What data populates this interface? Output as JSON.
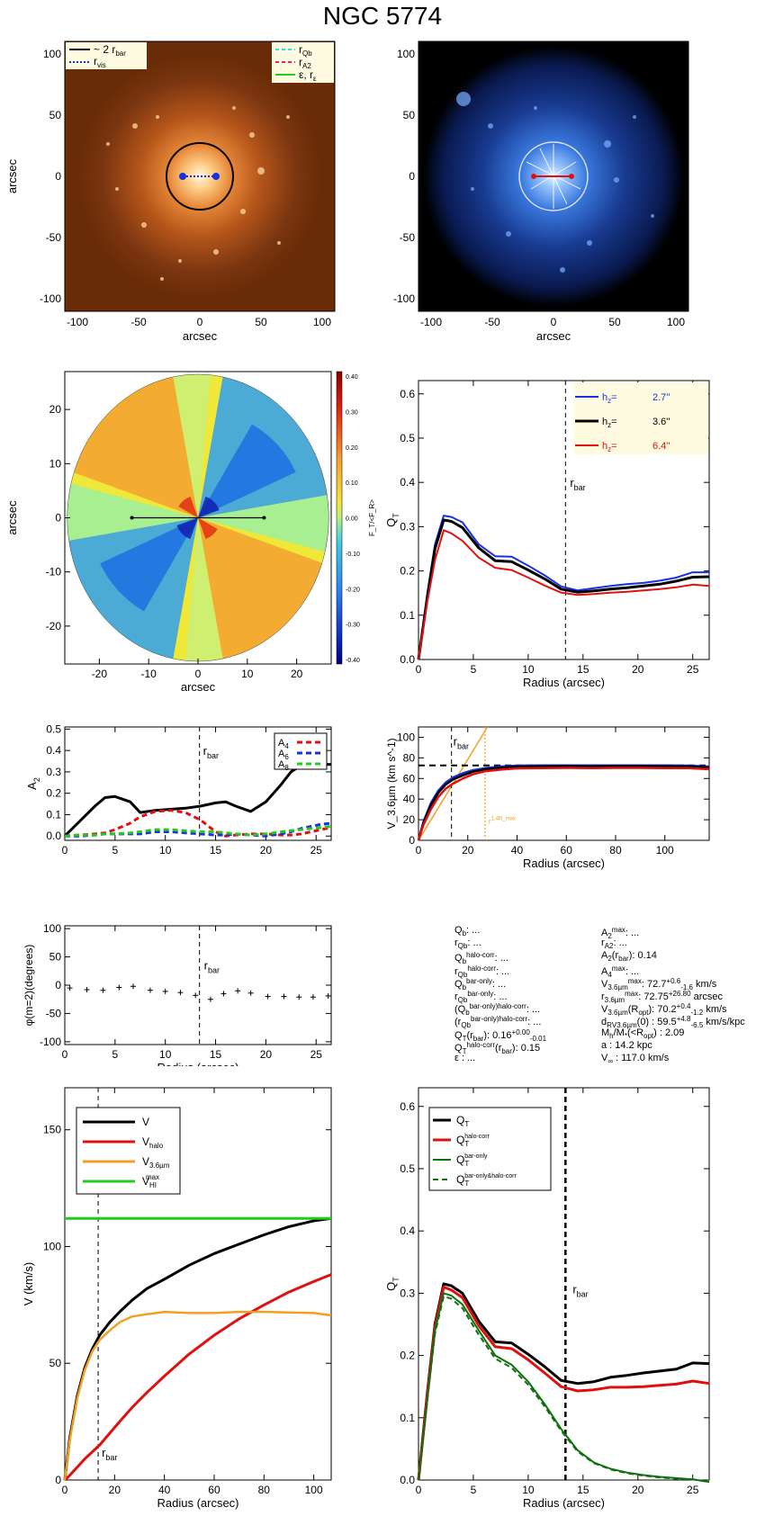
{
  "title": "NGC 5774",
  "colors": {
    "black": "#000000",
    "red": "#e01010",
    "blue": "#1830e0",
    "green": "#20cc20",
    "orange": "#f0a020",
    "dkgreen": "#107010",
    "cyan": "#30e0e0",
    "magenta": "#e0207a",
    "image_bg_orange": "#6a2c08",
    "image_bg_blue": "#000000"
  },
  "panel_images": {
    "left": {
      "xlabel": "arcsec",
      "ylabel": "arcsec",
      "ticks": [
        "-100",
        "-50",
        "0",
        "50",
        "100"
      ],
      "legend_left": [
        "~ 2 r",
        "bar",
        "r",
        "vis"
      ],
      "legend_right": [
        "r",
        "Qb",
        "r",
        "A2",
        "ε, r",
        "ε"
      ]
    },
    "right": {
      "xlabel": "arcsec",
      "ticks": [
        "-100",
        "-50",
        "0",
        "50",
        "100"
      ]
    }
  },
  "chart_data": [
    {
      "id": "ratio_map",
      "type": "heatmap",
      "xlabel": "arcsec",
      "ylabel": "arcsec",
      "xticks": [
        "-20",
        "-10",
        "0",
        "10",
        "20"
      ],
      "yticks": [
        "20",
        "10",
        "0",
        "-10",
        "-20"
      ],
      "xlim": [
        -27,
        27
      ],
      "ylim": [
        -27,
        27
      ],
      "colorbar_label": "F_T/<F_R>",
      "colorbar_ticks": [
        "0.40",
        "0.30",
        "0.20",
        "0.10",
        "0.00",
        "-0.10",
        "-0.20",
        "-0.30",
        "-0.40"
      ],
      "bar_line_x": [
        -13.4,
        13.4
      ]
    },
    {
      "id": "qt_profile",
      "type": "line",
      "xlabel": "Radius (arcsec)",
      "ylabel": "Q_T",
      "xlim": [
        0,
        26.5
      ],
      "ylim": [
        0,
        0.63
      ],
      "xticks": [
        "0",
        "5",
        "10",
        "15",
        "20",
        "25"
      ],
      "yticks": [
        "0.0",
        "0.1",
        "0.2",
        "0.3",
        "0.4",
        "0.5",
        "0.6"
      ],
      "rbar": 13.4,
      "rbar_label": "r",
      "rbar_sub": "bar",
      "legend": [
        "h",
        "z",
        "= ",
        "2.7''",
        "h",
        "z",
        "= ",
        "3.6''",
        "h",
        "z",
        "= ",
        "6.4''"
      ],
      "x": [
        0,
        0.8,
        1.5,
        2.3,
        3.0,
        4.0,
        5.5,
        7.0,
        8.5,
        10.0,
        11.5,
        13.0,
        14.5,
        16.0,
        17.5,
        19.0,
        20.5,
        22.0,
        23.5,
        25.0,
        26.5
      ],
      "series": [
        {
          "name": "2.7''",
          "color": "blue",
          "values": [
            0,
            0.15,
            0.26,
            0.325,
            0.322,
            0.31,
            0.26,
            0.233,
            0.232,
            0.212,
            0.19,
            0.165,
            0.156,
            0.161,
            0.166,
            0.17,
            0.173,
            0.178,
            0.185,
            0.197,
            0.197
          ]
        },
        {
          "name": "3.6''",
          "color": "black",
          "values": [
            0,
            0.14,
            0.25,
            0.315,
            0.312,
            0.298,
            0.252,
            0.223,
            0.221,
            0.202,
            0.182,
            0.159,
            0.152,
            0.155,
            0.159,
            0.162,
            0.166,
            0.17,
            0.177,
            0.186,
            0.187
          ]
        },
        {
          "name": "6.4''",
          "color": "red",
          "values": [
            0,
            0.13,
            0.225,
            0.292,
            0.285,
            0.268,
            0.23,
            0.207,
            0.202,
            0.185,
            0.167,
            0.151,
            0.146,
            0.148,
            0.151,
            0.153,
            0.156,
            0.159,
            0.163,
            0.169,
            0.166
          ]
        }
      ]
    },
    {
      "id": "fourier_amps",
      "type": "line",
      "ylabel": "A_2",
      "xlim": [
        0,
        26.5
      ],
      "ylim": [
        -0.02,
        0.51
      ],
      "xticks": [
        "0",
        "5",
        "10",
        "15",
        "20",
        "25"
      ],
      "yticks": [
        "0.0",
        "0.1",
        "0.2",
        "0.3",
        "0.4",
        "0.5"
      ],
      "rbar": 13.4,
      "rbar_label": "r",
      "rbar_sub": "bar",
      "legend": [
        "A",
        "4",
        "A",
        "6",
        "A",
        "8"
      ],
      "x": [
        0,
        1.5,
        3.0,
        4.0,
        5.0,
        6.5,
        7.5,
        9.0,
        10.5,
        12.0,
        13.5,
        15.0,
        16.0,
        17.0,
        18.5,
        20.0,
        21.5,
        22.5,
        23.5,
        24.5,
        25.5,
        26.5
      ],
      "series": [
        {
          "name": "A2",
          "color": "black",
          "values": [
            0,
            0.07,
            0.14,
            0.18,
            0.185,
            0.16,
            0.11,
            0.12,
            0.125,
            0.13,
            0.14,
            0.155,
            0.16,
            0.14,
            0.115,
            0.16,
            0.24,
            0.3,
            0.33,
            0.335,
            0.335,
            0.335
          ]
        },
        {
          "name": "A4",
          "color": "red",
          "values": [
            0,
            0.005,
            0.01,
            0.015,
            0.03,
            0.06,
            0.09,
            0.115,
            0.12,
            0.11,
            0.075,
            0.02,
            0.0,
            0.005,
            0.01,
            0.01,
            0.005,
            0.005,
            0.01,
            0.02,
            0.03,
            0.04
          ]
        },
        {
          "name": "A6",
          "color": "blue",
          "values": [
            0,
            0.0,
            0.005,
            0.01,
            0.01,
            0.01,
            0.01,
            0.02,
            0.02,
            0.015,
            0.01,
            0.005,
            0.005,
            0.01,
            0.005,
            0.0,
            0.01,
            0.02,
            0.035,
            0.045,
            0.055,
            0.06
          ]
        },
        {
          "name": "A8",
          "color": "green",
          "values": [
            0,
            0.005,
            0.005,
            0.01,
            0.01,
            0.015,
            0.02,
            0.03,
            0.03,
            0.025,
            0.02,
            0.02,
            0.015,
            0.01,
            0.005,
            0.01,
            0.02,
            0.025,
            0.03,
            0.035,
            0.04,
            0.045
          ]
        }
      ]
    },
    {
      "id": "rotation_36",
      "type": "line",
      "ylabel": "V_3.6µm (km s^-1)",
      "xlabel": "Radius (arcsec)",
      "xlim": [
        0,
        118
      ],
      "ylim": [
        0,
        110
      ],
      "xticks": [
        "0",
        "20",
        "40",
        "60",
        "80",
        "100"
      ],
      "yticks": [
        "0",
        "20",
        "40",
        "60",
        "80",
        "100"
      ],
      "rbar": 13.4,
      "rbar_label": "r",
      "rbar_sub": "bar",
      "r_max_label": "r",
      "r_max_sub": "1.4R_max",
      "r_max_x": 27.0,
      "vflat": 72.7,
      "x": [
        0,
        2,
        5,
        8,
        11,
        14,
        18,
        22,
        27,
        33,
        40,
        50,
        60,
        70,
        80,
        90,
        100,
        110,
        118
      ],
      "series": [
        {
          "name": "blue",
          "color": "blue",
          "values": [
            0,
            18,
            36,
            48,
            56,
            61,
            65,
            68,
            70,
            71.5,
            72.5,
            72.6,
            72.7,
            72.6,
            72.7,
            72.7,
            72.6,
            72.5,
            71.5
          ]
        },
        {
          "name": "black",
          "color": "black",
          "values": [
            0,
            17,
            34,
            46,
            54,
            59,
            63,
            66.5,
            69,
            70.5,
            71.5,
            71.8,
            72,
            71.8,
            72,
            72,
            71.8,
            71.7,
            70.7
          ]
        },
        {
          "name": "red",
          "color": "red",
          "values": [
            0,
            15,
            30,
            42,
            50,
            55,
            60,
            64,
            67,
            68.5,
            69.8,
            70,
            70.3,
            70.1,
            70.3,
            70.3,
            70.1,
            70,
            69
          ]
        }
      ],
      "orange_line": [
        [
          0,
          0
        ],
        [
          28,
          110
        ]
      ]
    },
    {
      "id": "phase_m2",
      "type": "scatter",
      "ylabel": "φ(m=2)(degrees)",
      "xlabel": "Radius (arcsec)",
      "xlim": [
        0,
        26.5
      ],
      "ylim": [
        -105,
        105
      ],
      "xticks": [
        "0",
        "5",
        "10",
        "15",
        "20",
        "25"
      ],
      "yticks": [
        "100",
        "50",
        "0",
        "-50",
        "-100"
      ],
      "rbar": 13.4,
      "rbar_label": "r",
      "rbar_sub": "bar",
      "x": [
        0.5,
        2.2,
        3.8,
        5.4,
        6.8,
        8.5,
        10.0,
        11.5,
        13.0,
        14.5,
        15.8,
        17.2,
        18.5,
        20.2,
        21.8,
        23.3,
        24.7,
        26.2
      ],
      "y": [
        -5,
        -8,
        -9,
        -4,
        -2,
        -9,
        -11,
        -13,
        -18,
        -25,
        -15,
        -10,
        -14,
        -20,
        -20,
        -21,
        -21,
        -19
      ]
    },
    {
      "id": "rotation_curves",
      "type": "line",
      "ylabel": "V (km/s)",
      "xlabel": "Radius (arcsec)",
      "xlim": [
        0,
        107
      ],
      "ylim": [
        0,
        168
      ],
      "xticks": [
        "0",
        "20",
        "40",
        "60",
        "80",
        "100"
      ],
      "yticks": [
        "0",
        "50",
        "100",
        "150"
      ],
      "rbar": 13.4,
      "rbar_label": "r",
      "rbar_sub": "bar",
      "legend": [
        "V",
        "V",
        "halo",
        "V",
        "3.6µm",
        "V",
        "HI",
        "max"
      ],
      "x": [
        0,
        2,
        5,
        8,
        11,
        14,
        18,
        22,
        27,
        33,
        40,
        50,
        60,
        70,
        80,
        90,
        100,
        107
      ],
      "series": [
        {
          "name": "V",
          "color": "black",
          "values": [
            0,
            18,
            36,
            48,
            56,
            62,
            67.5,
            72,
            77,
            82,
            86,
            92,
            97,
            101,
            105,
            108.5,
            111,
            112
          ]
        },
        {
          "name": "Vhalo",
          "color": "red",
          "values": [
            0,
            2,
            5.5,
            9,
            12,
            15,
            20,
            25,
            31,
            37.5,
            44.5,
            54,
            62,
            69,
            75,
            80.5,
            85,
            88
          ]
        },
        {
          "name": "V3.6µm",
          "color": "orange",
          "values": [
            0,
            17,
            35,
            47,
            55,
            60,
            64,
            67.5,
            70,
            71,
            72,
            71.5,
            71.5,
            72,
            72,
            71.8,
            71.5,
            70.5
          ]
        },
        {
          "name": "VHImax",
          "color": "green",
          "values": [
            112,
            112,
            112,
            112,
            112,
            112,
            112,
            112,
            112,
            112,
            112,
            112,
            112,
            112,
            112,
            112,
            112,
            112
          ]
        }
      ]
    },
    {
      "id": "qt_corrected",
      "type": "line",
      "ylabel": "Q_T",
      "xlabel": "Radius (arcsec)",
      "xlim": [
        0,
        26.5
      ],
      "ylim": [
        0,
        0.63
      ],
      "xticks": [
        "0",
        "5",
        "10",
        "15",
        "20",
        "25"
      ],
      "yticks": [
        "0.0",
        "0.1",
        "0.2",
        "0.3",
        "0.4",
        "0.5",
        "0.6"
      ],
      "rbar": 13.4,
      "rbar_label": "r",
      "rbar_sub": "bar",
      "legend": [
        "Q",
        "T",
        "Q",
        "T",
        "halo-corr",
        "Q",
        "T",
        "bar-only",
        "Q",
        "T",
        "bar-only&halo-corr"
      ],
      "x": [
        0,
        0.8,
        1.5,
        2.3,
        3.0,
        4.0,
        5.5,
        7.0,
        8.5,
        10.0,
        11.5,
        13.0,
        14.5,
        16.0,
        17.5,
        19.0,
        20.5,
        22.0,
        23.5,
        25.0,
        26.5
      ],
      "series": [
        {
          "name": "QT",
          "color": "black",
          "values": [
            0,
            0.14,
            0.25,
            0.315,
            0.312,
            0.3,
            0.255,
            0.222,
            0.22,
            0.202,
            0.182,
            0.16,
            0.155,
            0.158,
            0.165,
            0.168,
            0.172,
            0.175,
            0.178,
            0.188,
            0.187
          ]
        },
        {
          "name": "QT halo-corr",
          "color": "red",
          "values": [
            0,
            0.135,
            0.245,
            0.31,
            0.305,
            0.293,
            0.248,
            0.214,
            0.211,
            0.193,
            0.172,
            0.15,
            0.143,
            0.145,
            0.149,
            0.149,
            0.15,
            0.152,
            0.154,
            0.159,
            0.155
          ]
        },
        {
          "name": "QT bar-only",
          "color": "dkgreen",
          "values": [
            0,
            0.13,
            0.24,
            0.3,
            0.296,
            0.282,
            0.24,
            0.2,
            0.185,
            0.158,
            0.122,
            0.082,
            0.048,
            0.028,
            0.018,
            0.012,
            0.008,
            0.005,
            0.003,
            0.001,
            -0.003
          ]
        },
        {
          "name": "QT bar-only&halo-corr",
          "color": "dkgreen",
          "dashed": true,
          "values": [
            0,
            0.128,
            0.235,
            0.295,
            0.291,
            0.276,
            0.233,
            0.195,
            0.18,
            0.153,
            0.118,
            0.079,
            0.046,
            0.027,
            0.017,
            0.011,
            0.007,
            0.004,
            0.002,
            0.001,
            -0.003
          ]
        }
      ]
    }
  ],
  "info_left": [
    [
      "Q",
      "b",
      ": ..."
    ],
    [
      "r",
      "Qb",
      ": ..."
    ],
    [
      "Q",
      "b",
      "halo-corr",
      ": ..."
    ],
    [
      "r",
      "Qb",
      "halo-corr",
      ": ..."
    ],
    [
      "Q",
      "b",
      "bar-only",
      ": ..."
    ],
    [
      "r",
      "Qb",
      "bar-only",
      ": ..."
    ],
    [
      "(Q",
      "b",
      "bar-only)halo-corr",
      ": ..."
    ],
    [
      "(r",
      "Qb",
      "bar-only)halo-corr",
      ": ..."
    ],
    [
      "Q",
      "T",
      "(r",
      "bar",
      "):  0.16",
      "+0.00",
      "-0.01"
    ],
    [
      "Q",
      "T",
      "halo-corr",
      "(r",
      "bar",
      "):  0.15"
    ],
    [
      "ε : ..."
    ]
  ],
  "info_right": [
    [
      "A",
      "2",
      "max",
      ": ..."
    ],
    [
      "r",
      "A2",
      ": ..."
    ],
    [
      "A",
      "2",
      "(r",
      "bar",
      "):  0.14"
    ],
    [
      "A",
      "4",
      "max",
      ": ..."
    ],
    [
      "V",
      "3.6µm",
      "max",
      ":  72.7",
      "+0.6",
      "-1.6",
      " km/s"
    ],
    [
      "r",
      "3.6µm",
      "max",
      ":  72.75",
      "+26.80",
      " arcsec"
    ],
    [
      "V",
      "3.6µm",
      "(R",
      "opt",
      "):  70.2",
      "+0.4",
      "-1.2",
      " km/s"
    ],
    [
      "d",
      "R",
      "V",
      "3.6µm",
      "(0) :  59.5",
      "+4.8",
      "-6.5",
      " km/s/kpc"
    ],
    [
      "M",
      "h",
      "/M",
      "*",
      "(<R",
      "opt",
      ") :  2.09"
    ],
    [
      "a :  14.2 kpc"
    ],
    [
      "V",
      "∞",
      " :  117.0 km/s"
    ]
  ]
}
